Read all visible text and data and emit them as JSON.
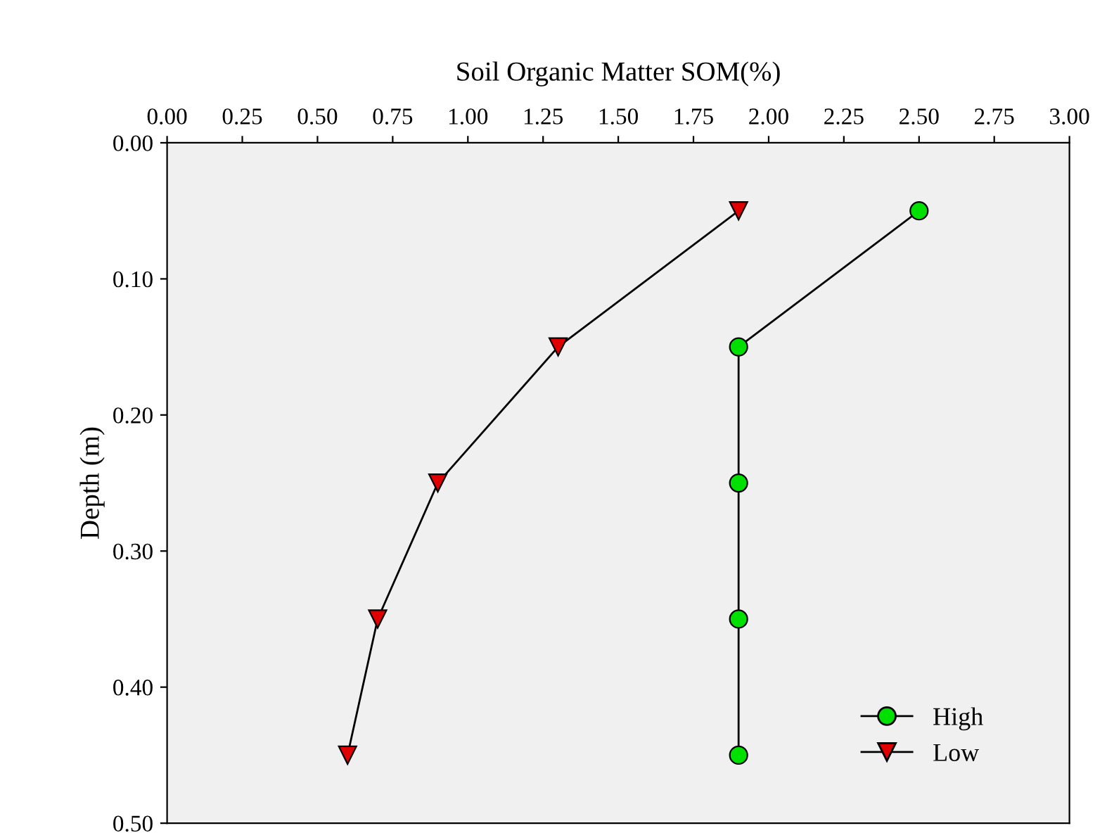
{
  "chart_data": {
    "type": "line",
    "xlabel": "Soil Organic Matter SOM(%)",
    "ylabel": "Depth (m)",
    "xlim": [
      0,
      3
    ],
    "xticks": [
      {
        "value": 0,
        "label": "0.00"
      },
      {
        "value": 0.25,
        "label": "0.25"
      },
      {
        "value": 0.5,
        "label": "0.50"
      },
      {
        "value": 0.75,
        "label": "0.75"
      },
      {
        "value": 1,
        "label": "1.00"
      },
      {
        "value": 1.25,
        "label": "1.25"
      },
      {
        "value": 1.5,
        "label": "1.50"
      },
      {
        "value": 1.75,
        "label": "1.75"
      },
      {
        "value": 2,
        "label": "2.00"
      },
      {
        "value": 2.25,
        "label": "2.25"
      },
      {
        "value": 2.5,
        "label": "2.50"
      },
      {
        "value": 2.75,
        "label": "2.75"
      },
      {
        "value": 3,
        "label": "3.00"
      }
    ],
    "ylim": [
      0.5,
      0
    ],
    "yticks": [
      {
        "value": 0,
        "label": "0.00"
      },
      {
        "value": 0.1,
        "label": "0.10"
      },
      {
        "value": 0.2,
        "label": "0.20"
      },
      {
        "value": 0.3,
        "label": "0.30"
      },
      {
        "value": 0.4,
        "label": "0.40"
      },
      {
        "value": 0.5,
        "label": "0.50"
      }
    ],
    "grid": false,
    "legend": "bottom right",
    "line_style": "solid",
    "series": [
      {
        "name": "High",
        "color": "#00e000",
        "marker": "circle",
        "x": [
          2.5,
          1.9,
          1.9,
          1.9,
          1.9
        ],
        "values": [
          0.05,
          0.15,
          0.25,
          0.35,
          0.45
        ]
      },
      {
        "name": "Low",
        "color": "#e00000",
        "marker": "triangle",
        "x": [
          1.9,
          1.3,
          0.9,
          0.7,
          0.6
        ],
        "values": [
          0.05,
          0.15,
          0.25,
          0.35,
          0.45
        ]
      }
    ]
  }
}
